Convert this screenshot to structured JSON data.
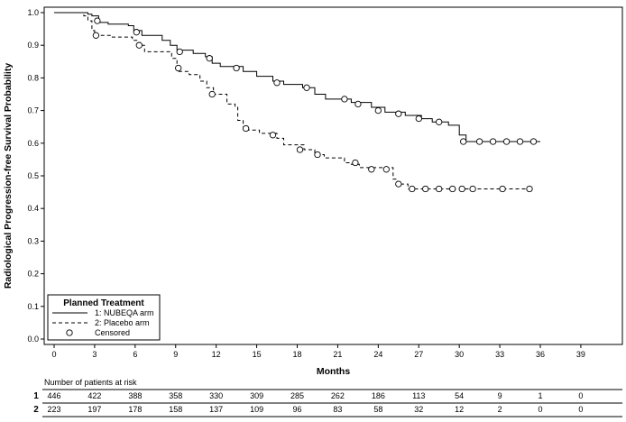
{
  "chart_data": {
    "type": "line",
    "subtype": "kaplan-meier step curve",
    "xlabel": "Months",
    "ylabel": "Radiological Progression-free Survival Probability",
    "xlim": [
      0,
      39
    ],
    "ylim": [
      0,
      1.0
    ],
    "x_ticks": [
      0,
      3,
      6,
      9,
      12,
      15,
      18,
      21,
      24,
      27,
      30,
      33,
      36,
      39
    ],
    "y_ticks": [
      "0.0",
      "0.1",
      "0.2",
      "0.3",
      "0.4",
      "0.5",
      "0.6",
      "0.7",
      "0.8",
      "0.9",
      "1.0"
    ],
    "grid": false,
    "legend": {
      "title": "Planned Treatment",
      "placement": "bottom-left",
      "entries": [
        "1: NUBEQA arm",
        "2: Placebo arm",
        "Censored"
      ]
    },
    "series": [
      {
        "name": "1: NUBEQA arm",
        "line_style": "solid",
        "points": [
          [
            0,
            1.0
          ],
          [
            2.5,
            0.995
          ],
          [
            2.8,
            0.99
          ],
          [
            3.3,
            0.97
          ],
          [
            4,
            0.965
          ],
          [
            5.5,
            0.96
          ],
          [
            5.9,
            0.945
          ],
          [
            6.5,
            0.93
          ],
          [
            8,
            0.915
          ],
          [
            8.6,
            0.9
          ],
          [
            9.1,
            0.885
          ],
          [
            10.3,
            0.875
          ],
          [
            11.2,
            0.865
          ],
          [
            11.7,
            0.845
          ],
          [
            12.3,
            0.835
          ],
          [
            14,
            0.82
          ],
          [
            15,
            0.805
          ],
          [
            16.2,
            0.79
          ],
          [
            17,
            0.78
          ],
          [
            18.4,
            0.77
          ],
          [
            19.3,
            0.75
          ],
          [
            20.1,
            0.735
          ],
          [
            22,
            0.725
          ],
          [
            23.5,
            0.71
          ],
          [
            24.5,
            0.695
          ],
          [
            26,
            0.685
          ],
          [
            27.2,
            0.675
          ],
          [
            28,
            0.665
          ],
          [
            29.2,
            0.655
          ],
          [
            30,
            0.625
          ],
          [
            30.5,
            0.605
          ],
          [
            36,
            0.605
          ]
        ],
        "censored": [
          [
            3.2,
            0.975
          ],
          [
            6.1,
            0.94
          ],
          [
            9.3,
            0.88
          ],
          [
            11.5,
            0.86
          ],
          [
            13.5,
            0.83
          ],
          [
            16.5,
            0.785
          ],
          [
            18.7,
            0.77
          ],
          [
            21.5,
            0.735
          ],
          [
            22.5,
            0.72
          ],
          [
            24,
            0.7
          ],
          [
            25.5,
            0.69
          ],
          [
            27,
            0.675
          ],
          [
            28.5,
            0.665
          ],
          [
            30.3,
            0.605
          ],
          [
            31.5,
            0.605
          ],
          [
            32.5,
            0.605
          ],
          [
            33.5,
            0.605
          ],
          [
            34.5,
            0.605
          ],
          [
            35.5,
            0.605
          ]
        ]
      },
      {
        "name": "2: Placebo arm",
        "line_style": "dashed",
        "points": [
          [
            0,
            1.0
          ],
          [
            2.2,
            0.99
          ],
          [
            2.5,
            0.975
          ],
          [
            2.8,
            0.945
          ],
          [
            3,
            0.93
          ],
          [
            4.2,
            0.925
          ],
          [
            5.8,
            0.915
          ],
          [
            6.2,
            0.9
          ],
          [
            6.7,
            0.88
          ],
          [
            8.4,
            0.88
          ],
          [
            8.7,
            0.86
          ],
          [
            9.1,
            0.82
          ],
          [
            10,
            0.81
          ],
          [
            10.8,
            0.79
          ],
          [
            11.3,
            0.77
          ],
          [
            11.8,
            0.75
          ],
          [
            12.8,
            0.72
          ],
          [
            13.4,
            0.71
          ],
          [
            13.6,
            0.67
          ],
          [
            14,
            0.65
          ],
          [
            14.4,
            0.64
          ],
          [
            15.2,
            0.63
          ],
          [
            16.5,
            0.615
          ],
          [
            17,
            0.595
          ],
          [
            18.5,
            0.58
          ],
          [
            19.3,
            0.565
          ],
          [
            20,
            0.555
          ],
          [
            21.5,
            0.54
          ],
          [
            22,
            0.535
          ],
          [
            22.6,
            0.525
          ],
          [
            25.1,
            0.49
          ],
          [
            25.4,
            0.475
          ],
          [
            26.2,
            0.46
          ],
          [
            35.2,
            0.46
          ]
        ],
        "censored": [
          [
            3.1,
            0.93
          ],
          [
            6.3,
            0.9
          ],
          [
            9.2,
            0.83
          ],
          [
            11.7,
            0.75
          ],
          [
            14.2,
            0.645
          ],
          [
            16.2,
            0.625
          ],
          [
            18.2,
            0.58
          ],
          [
            19.5,
            0.565
          ],
          [
            22.3,
            0.54
          ],
          [
            23.5,
            0.52
          ],
          [
            24.6,
            0.52
          ],
          [
            25.5,
            0.475
          ],
          [
            26.5,
            0.46
          ],
          [
            27.5,
            0.46
          ],
          [
            28.5,
            0.46
          ],
          [
            29.5,
            0.46
          ],
          [
            30.2,
            0.46
          ],
          [
            31,
            0.46
          ],
          [
            33.2,
            0.46
          ],
          [
            35.2,
            0.46
          ]
        ]
      }
    ],
    "at_risk": {
      "title": "Number of patients at risk",
      "rows": [
        {
          "label": "1",
          "values": [
            "446",
            "422",
            "388",
            "358",
            "330",
            "309",
            "285",
            "262",
            "186",
            "113",
            "54",
            "9",
            "1",
            "0"
          ]
        },
        {
          "label": "2",
          "values": [
            "223",
            "197",
            "178",
            "158",
            "137",
            "109",
            "96",
            "83",
            "58",
            "32",
            "12",
            "2",
            "0",
            "0"
          ]
        }
      ]
    }
  }
}
